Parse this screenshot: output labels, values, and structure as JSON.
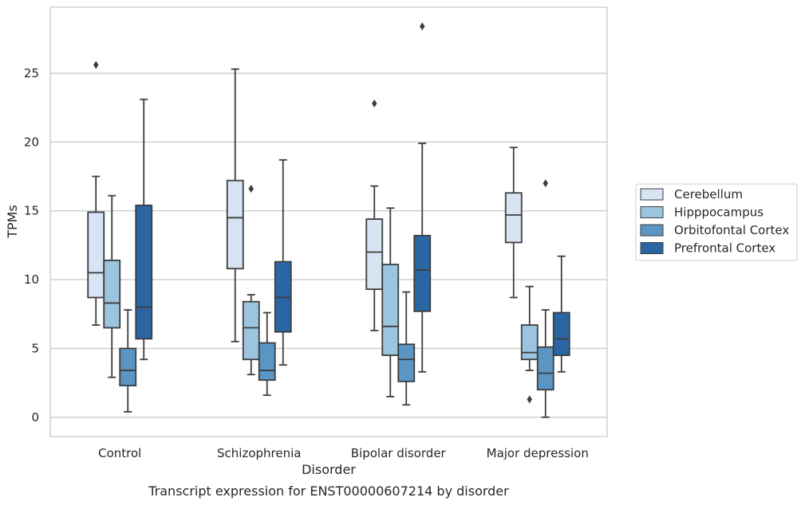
{
  "chart_data": {
    "type": "box",
    "caption": "Transcript expression for ENST00000607214 by disorder",
    "xlabel": "Disorder",
    "ylabel": "TPMs",
    "ylim": [
      -1.4,
      29.8
    ],
    "yticks": [
      0,
      5,
      10,
      15,
      20,
      25
    ],
    "grid": true,
    "legend_position": "right",
    "categories": [
      "Control",
      "Schizophrenia",
      "Bipolar disorder",
      "Major depression"
    ],
    "series": [
      {
        "name": "Cerebellum",
        "color": "#d6e4f3",
        "boxes": [
          {
            "whislo": 6.7,
            "q1": 8.7,
            "med": 10.5,
            "q3": 14.9,
            "whishi": 17.5,
            "fliers": [
              25.6
            ]
          },
          {
            "whislo": 5.5,
            "q1": 10.8,
            "med": 14.5,
            "q3": 17.2,
            "whishi": 25.3,
            "fliers": []
          },
          {
            "whislo": 6.3,
            "q1": 9.3,
            "med": 12.0,
            "q3": 14.4,
            "whishi": 16.8,
            "fliers": [
              22.8
            ]
          },
          {
            "whislo": 8.7,
            "q1": 12.7,
            "med": 14.7,
            "q3": 16.3,
            "whishi": 19.6,
            "fliers": []
          }
        ]
      },
      {
        "name": "Hipppocampus",
        "color": "#9bc5df",
        "boxes": [
          {
            "whislo": 2.9,
            "q1": 6.5,
            "med": 8.3,
            "q3": 11.4,
            "whishi": 16.1,
            "fliers": []
          },
          {
            "whislo": 3.1,
            "q1": 4.2,
            "med": 6.5,
            "q3": 8.4,
            "whishi": 8.9,
            "fliers": [
              16.6
            ]
          },
          {
            "whislo": 1.5,
            "q1": 4.5,
            "med": 6.6,
            "q3": 11.1,
            "whishi": 15.2,
            "fliers": []
          },
          {
            "whislo": 3.4,
            "q1": 4.2,
            "med": 4.7,
            "q3": 6.7,
            "whishi": 9.5,
            "fliers": [
              1.3
            ]
          }
        ]
      },
      {
        "name": "Orbitofontal Cortex",
        "color": "#5a95c4",
        "boxes": [
          {
            "whislo": 0.4,
            "q1": 2.3,
            "med": 3.4,
            "q3": 5.0,
            "whishi": 7.8,
            "fliers": []
          },
          {
            "whislo": 1.6,
            "q1": 2.7,
            "med": 3.4,
            "q3": 5.4,
            "whishi": 7.6,
            "fliers": []
          },
          {
            "whislo": 0.9,
            "q1": 2.6,
            "med": 4.2,
            "q3": 5.3,
            "whishi": 9.1,
            "fliers": []
          },
          {
            "whislo": 0.0,
            "q1": 2.0,
            "med": 3.2,
            "q3": 5.1,
            "whishi": 7.8,
            "fliers": [
              17.0
            ]
          }
        ]
      },
      {
        "name": "Prefrontal Cortex",
        "color": "#2a66a3",
        "boxes": [
          {
            "whislo": 4.2,
            "q1": 5.7,
            "med": 8.0,
            "q3": 15.4,
            "whishi": 23.1,
            "fliers": []
          },
          {
            "whislo": 3.8,
            "q1": 6.2,
            "med": 8.7,
            "q3": 11.3,
            "whishi": 18.7,
            "fliers": []
          },
          {
            "whislo": 3.3,
            "q1": 7.7,
            "med": 10.7,
            "q3": 13.2,
            "whishi": 19.9,
            "fliers": [
              28.4
            ]
          },
          {
            "whislo": 3.3,
            "q1": 4.5,
            "med": 5.7,
            "q3": 7.6,
            "whishi": 11.7,
            "fliers": []
          }
        ]
      }
    ]
  }
}
